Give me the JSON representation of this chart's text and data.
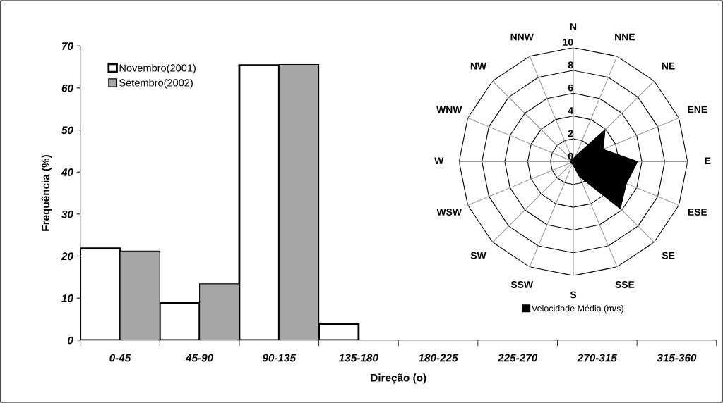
{
  "chart_data": [
    {
      "type": "bar",
      "xlabel": "Direção (o)",
      "ylabel": "Frequência (%)",
      "categories": [
        "0-45",
        "45-90",
        "90-135",
        "135-180",
        "180-225",
        "225-270",
        "270-315",
        "315-360"
      ],
      "series": [
        {
          "name": "Novembro(2001)",
          "color": "#ffffff",
          "values": [
            21.8,
            8.8,
            65.4,
            3.9,
            null,
            null,
            null,
            null
          ]
        },
        {
          "name": "Setembro(2002)",
          "color": "#a6a6a6",
          "values": [
            21.2,
            13.4,
            65.6,
            null,
            null,
            null,
            null,
            null
          ]
        }
      ],
      "ylim": [
        0,
        70
      ],
      "yticks": [
        0,
        10,
        20,
        30,
        40,
        50,
        60,
        70
      ],
      "grid": false,
      "legend": "top left"
    },
    {
      "type": "radar",
      "categories": [
        "N",
        "NNE",
        "NE",
        "ENE",
        "E",
        "ESE",
        "SE",
        "SSE",
        "S",
        "SSW",
        "SW",
        "WSW",
        "W",
        "WNW",
        "NW",
        "NNW"
      ],
      "series": [
        {
          "name": "Velocidade Média (m/s)",
          "color": "#000000",
          "values": [
            0.2,
            0.5,
            3.9,
            2.8,
            5.6,
            5.0,
            5.8,
            1.4,
            0.3,
            0.2,
            0.2,
            0.2,
            0.2,
            0.2,
            0.2,
            0.2
          ]
        }
      ],
      "ylim": [
        0,
        10
      ],
      "yticks": [
        0,
        2,
        4,
        6,
        8,
        10
      ],
      "grid": true,
      "legend": "bottom"
    }
  ]
}
